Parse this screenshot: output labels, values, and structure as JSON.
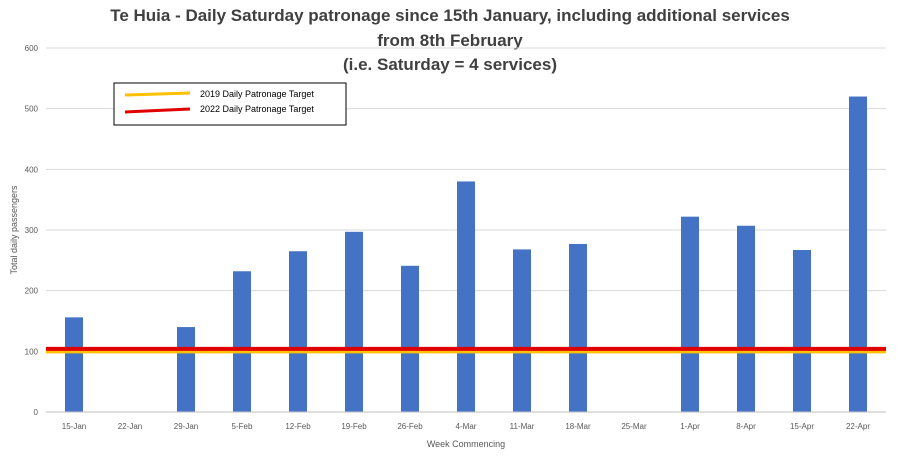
{
  "chart_data": {
    "type": "bar",
    "title_lines": [
      "Te Huia - Daily Saturday patronage since 15th January, including additional services",
      "from 8th February",
      "(i.e. Saturday = 4 services)"
    ],
    "xlabel": "Week Commencing",
    "ylabel": "Total daily passengers",
    "ylim": [
      0,
      600
    ],
    "yticks": [
      0,
      100,
      200,
      300,
      400,
      500,
      600
    ],
    "grid": true,
    "categories": [
      "15-Jan",
      "22-Jan",
      "29-Jan",
      "5-Feb",
      "12-Feb",
      "19-Feb",
      "26-Feb",
      "4-Mar",
      "11-Mar",
      "18-Mar",
      "25-Mar",
      "1-Apr",
      "8-Apr",
      "15-Apr",
      "22-Apr"
    ],
    "values": [
      156,
      0,
      140,
      232,
      265,
      297,
      241,
      380,
      268,
      277,
      0,
      322,
      307,
      267,
      520
    ],
    "bar_color": "#4472c4",
    "reference_lines": [
      {
        "name": "2019 Daily Patronage Target",
        "value": 100,
        "color": "#ffc000"
      },
      {
        "name": "2022 Daily Patronage Target",
        "value": 104,
        "color": "#e00000"
      }
    ],
    "legend_position": "top-left"
  }
}
